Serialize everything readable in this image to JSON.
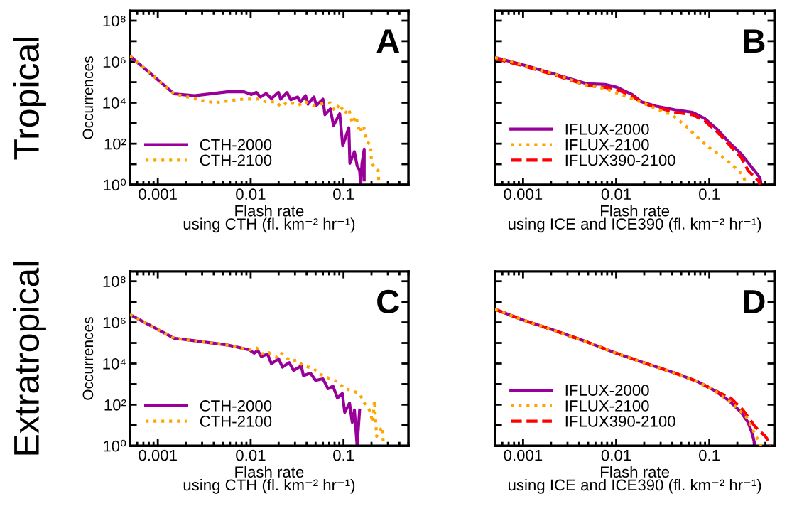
{
  "chart_data": [
    {
      "type": "line",
      "xlabel": "Flash rate\nusing CTH (fl. km⁻² hr⁻¹)",
      "ylabel": "Occurrences",
      "annotations": [
        "A",
        "Tropical"
      ],
      "log": "xy",
      "xlim": [
        0.0005,
        0.5
      ],
      "ylim": [
        1,
        300000000
      ],
      "xticks": [
        0.001,
        0.01,
        0.1
      ],
      "yticks": [
        {
          "value": 1,
          "label": "10⁰"
        },
        {
          "value": 10,
          "label": null
        },
        {
          "value": 100,
          "label": "10²"
        },
        {
          "value": 1000,
          "label": null
        },
        {
          "value": 10000,
          "label": "10⁴"
        },
        {
          "value": 100000,
          "label": null
        },
        {
          "value": 1000000,
          "label": "10⁶"
        },
        {
          "value": 10000000,
          "label": null
        },
        {
          "value": 100000000,
          "label": "10⁸"
        }
      ],
      "grid": false,
      "legend": "lower left",
      "series": [
        {
          "name": "CTH-2000",
          "color": "#990099",
          "line_style": "solid",
          "x": [
            0.0005,
            0.0015,
            0.0025,
            0.0056,
            0.0085,
            0.0102,
            0.0115,
            0.0127,
            0.0147,
            0.0167,
            0.0199,
            0.021,
            0.0246,
            0.027,
            0.032,
            0.0345,
            0.039,
            0.0414,
            0.048,
            0.051,
            0.06,
            0.063,
            0.072,
            0.078,
            0.091,
            0.098,
            0.114,
            0.117,
            0.131,
            0.14,
            0.149,
            0.153,
            0.158,
            0.167,
            0.167
          ],
          "values": [
            1900000,
            27000,
            22000,
            34000,
            34000,
            25000,
            32000,
            19000,
            28000,
            16000,
            32000,
            15000,
            31000,
            14000,
            19000,
            11000,
            22000,
            8500,
            19000,
            7400,
            15000,
            2600,
            5000,
            780,
            2900,
            80,
            600,
            11,
            41,
            8.4,
            5,
            1,
            11,
            54,
            1.7
          ]
        },
        {
          "name": "CTH-2100",
          "color": "#ffa500",
          "line_style": "dotted",
          "x": [
            0.0005,
            0.0015,
            0.003,
            0.0041,
            0.0063,
            0.0085,
            0.0123,
            0.0147,
            0.0188,
            0.021,
            0.0255,
            0.032,
            0.039,
            0.047,
            0.056,
            0.072,
            0.081,
            0.091,
            0.103,
            0.114,
            0.124,
            0.136,
            0.149,
            0.164,
            0.179,
            0.195,
            0.2,
            0.215,
            0.236,
            0.24
          ],
          "values": [
            1900000,
            27000,
            13000,
            10000,
            13000,
            15000,
            15000,
            11000,
            11000,
            6500,
            11000,
            7400,
            11000,
            7400,
            8500,
            9900,
            3900,
            8500,
            2900,
            5000,
            1000,
            2200,
            350,
            780,
            120,
            90,
            14,
            6.4,
            5,
            1.3
          ]
        }
      ]
    },
    {
      "type": "line",
      "xlabel": "Flash rate\nusing ICE and ICE390 (fl. km⁻² hr⁻¹)",
      "annotations": [
        "B"
      ],
      "log": "xy",
      "tick_labels": "x",
      "xlim": [
        0.0005,
        0.5
      ],
      "ylim": [
        1,
        300000000
      ],
      "xticks": [
        0.001,
        0.01,
        0.1
      ],
      "yticks": [
        {
          "value": 1,
          "label": null
        },
        {
          "value": 10,
          "label": null
        },
        {
          "value": 100,
          "label": null
        },
        {
          "value": 1000,
          "label": null
        },
        {
          "value": 10000,
          "label": null
        },
        {
          "value": 100000,
          "label": null
        },
        {
          "value": 1000000,
          "label": null
        },
        {
          "value": 10000000,
          "label": null
        },
        {
          "value": 100000000,
          "label": null
        }
      ],
      "grid": false,
      "legend": "lower left",
      "series": [
        {
          "name": "IFLUX-2000",
          "color": "#990099",
          "line_style": "solid",
          "x": [
            0.0005,
            0.001,
            0.002,
            0.0049,
            0.0076,
            0.0102,
            0.0148,
            0.0187,
            0.027,
            0.043,
            0.066,
            0.089,
            0.12,
            0.162,
            0.22,
            0.29,
            0.35,
            0.36
          ],
          "values": [
            1600000,
            700000,
            280000,
            83000,
            78000,
            56000,
            25000,
            11000,
            6700,
            4500,
            3400,
            1700,
            530,
            120,
            32,
            6.5,
            2.2,
            1
          ]
        },
        {
          "name": "IFLUX-2100",
          "color": "#ffa500",
          "line_style": "dotted",
          "x": [
            0.0005,
            0.001,
            0.002,
            0.0049,
            0.0076,
            0.0102,
            0.0166,
            0.027,
            0.041,
            0.055,
            0.074,
            0.1,
            0.135,
            0.18,
            0.23,
            0.25
          ],
          "values": [
            1600000,
            700000,
            280000,
            70000,
            49000,
            29000,
            13000,
            5100,
            2300,
            790,
            210,
            63,
            25,
            8.5,
            2.9,
            1
          ]
        },
        {
          "name": "IFLUX390-2100",
          "color": "#ff0000",
          "line_style": "dashed",
          "x": [
            0.0005,
            0.001,
            0.002,
            0.0049,
            0.0076,
            0.0102,
            0.0148,
            0.0187,
            0.027,
            0.043,
            0.066,
            0.089,
            0.12,
            0.162,
            0.22,
            0.26,
            0.34,
            0.35
          ],
          "values": [
            1400000,
            630000,
            250000,
            70000,
            56000,
            43000,
            22000,
            10000,
            5900,
            3400,
            2600,
            1300,
            400,
            93,
            21,
            5,
            1.5,
            1
          ]
        }
      ]
    },
    {
      "type": "line",
      "xlabel": "Flash rate\nusing CTH (fl. km⁻² hr⁻¹)",
      "ylabel": "Occurrences",
      "annotations": [
        "C",
        "Extratropical"
      ],
      "log": "xy",
      "xlim": [
        0.0005,
        0.5
      ],
      "ylim": [
        1,
        300000000
      ],
      "xticks": [
        0.001,
        0.01,
        0.1
      ],
      "yticks": [
        {
          "value": 1,
          "label": "10⁰"
        },
        {
          "value": 10,
          "label": null
        },
        {
          "value": 100,
          "label": "10²"
        },
        {
          "value": 1000,
          "label": null
        },
        {
          "value": 10000,
          "label": "10⁴"
        },
        {
          "value": 100000,
          "label": null
        },
        {
          "value": 1000000,
          "label": "10⁶"
        },
        {
          "value": 10000000,
          "label": null
        },
        {
          "value": 100000000,
          "label": "10⁸"
        }
      ],
      "grid": false,
      "legend": "lower left",
      "series": [
        {
          "name": "CTH-2000",
          "color": "#990099",
          "line_style": "solid",
          "x": [
            0.0005,
            0.0015,
            0.0056,
            0.0097,
            0.0109,
            0.0119,
            0.013,
            0.0152,
            0.0167,
            0.02,
            0.022,
            0.026,
            0.029,
            0.035,
            0.037,
            0.044,
            0.05,
            0.06,
            0.068,
            0.077,
            0.086,
            0.097,
            0.103,
            0.116,
            0.124,
            0.131,
            0.14,
            0.149
          ],
          "values": [
            2400000,
            170000,
            80000,
            46000,
            32000,
            44000,
            22000,
            29000,
            9800,
            17000,
            6700,
            11000,
            4600,
            7700,
            2600,
            3400,
            1500,
            1800,
            600,
            790,
            210,
            350,
            42,
            120,
            14,
            55,
            1,
            55
          ]
        },
        {
          "name": "CTH-2100",
          "color": "#ffa500",
          "line_style": "dotted",
          "x": [
            0.0005,
            0.0015,
            0.0056,
            0.0097,
            0.0116,
            0.013,
            0.0157,
            0.0188,
            0.021,
            0.027,
            0.031,
            0.037,
            0.047,
            0.056,
            0.072,
            0.086,
            0.103,
            0.124,
            0.149,
            0.167,
            0.19,
            0.207,
            0.215,
            0.227,
            0.26,
            0.27
          ],
          "values": [
            2400000,
            170000,
            80000,
            46000,
            57000,
            29000,
            34000,
            20000,
            34000,
            13000,
            15000,
            7700,
            5900,
            3000,
            1800,
            1350,
            600,
            470,
            350,
            120,
            55,
            14,
            160,
            2.9,
            8.5,
            1
          ]
        }
      ]
    },
    {
      "type": "line",
      "xlabel": "Flash rate\nusing ICE and ICE390 (fl. km⁻² hr⁻¹)",
      "annotations": [
        "D"
      ],
      "log": "xy",
      "tick_labels": "x",
      "xlim": [
        0.0005,
        0.5
      ],
      "ylim": [
        1,
        300000000
      ],
      "xticks": [
        0.001,
        0.01,
        0.1
      ],
      "yticks": [
        {
          "value": 1,
          "label": null
        },
        {
          "value": 10,
          "label": null
        },
        {
          "value": 100,
          "label": null
        },
        {
          "value": 1000,
          "label": null
        },
        {
          "value": 10000,
          "label": null
        },
        {
          "value": 100000,
          "label": null
        },
        {
          "value": 1000000,
          "label": null
        },
        {
          "value": 10000000,
          "label": null
        },
        {
          "value": 100000000,
          "label": null
        }
      ],
      "grid": false,
      "legend": "lower left",
      "series": [
        {
          "name": "IFLUX-2000",
          "color": "#990099",
          "line_style": "solid",
          "x": [
            0.0005,
            0.001,
            0.002,
            0.0049,
            0.01,
            0.021,
            0.043,
            0.074,
            0.11,
            0.162,
            0.22,
            0.26,
            0.29,
            0.31
          ],
          "values": [
            4300000,
            1300000,
            460000,
            110000,
            32000,
            10000,
            3400,
            1350,
            530,
            160,
            42,
            14,
            3.8,
            1
          ]
        },
        {
          "name": "IFLUX-2100",
          "color": "#ffa500",
          "line_style": "dotted",
          "x": [
            0.0005,
            0.001,
            0.002,
            0.0049,
            0.01,
            0.021,
            0.043,
            0.074,
            0.11,
            0.18,
            0.25,
            0.29,
            0.36
          ],
          "values": [
            4300000,
            1300000,
            460000,
            110000,
            32000,
            10000,
            3400,
            1350,
            530,
            107,
            25,
            6.5,
            1
          ]
        },
        {
          "name": "IFLUX390-2100",
          "color": "#ff0000",
          "line_style": "dashed",
          "x": [
            0.0005,
            0.001,
            0.002,
            0.0049,
            0.01,
            0.021,
            0.043,
            0.074,
            0.11,
            0.17,
            0.23,
            0.31,
            0.4,
            0.46
          ],
          "values": [
            4300000,
            1300000,
            460000,
            110000,
            32000,
            10000,
            3400,
            1350,
            530,
            210,
            55,
            8.5,
            2.9,
            1.1
          ]
        }
      ]
    }
  ]
}
